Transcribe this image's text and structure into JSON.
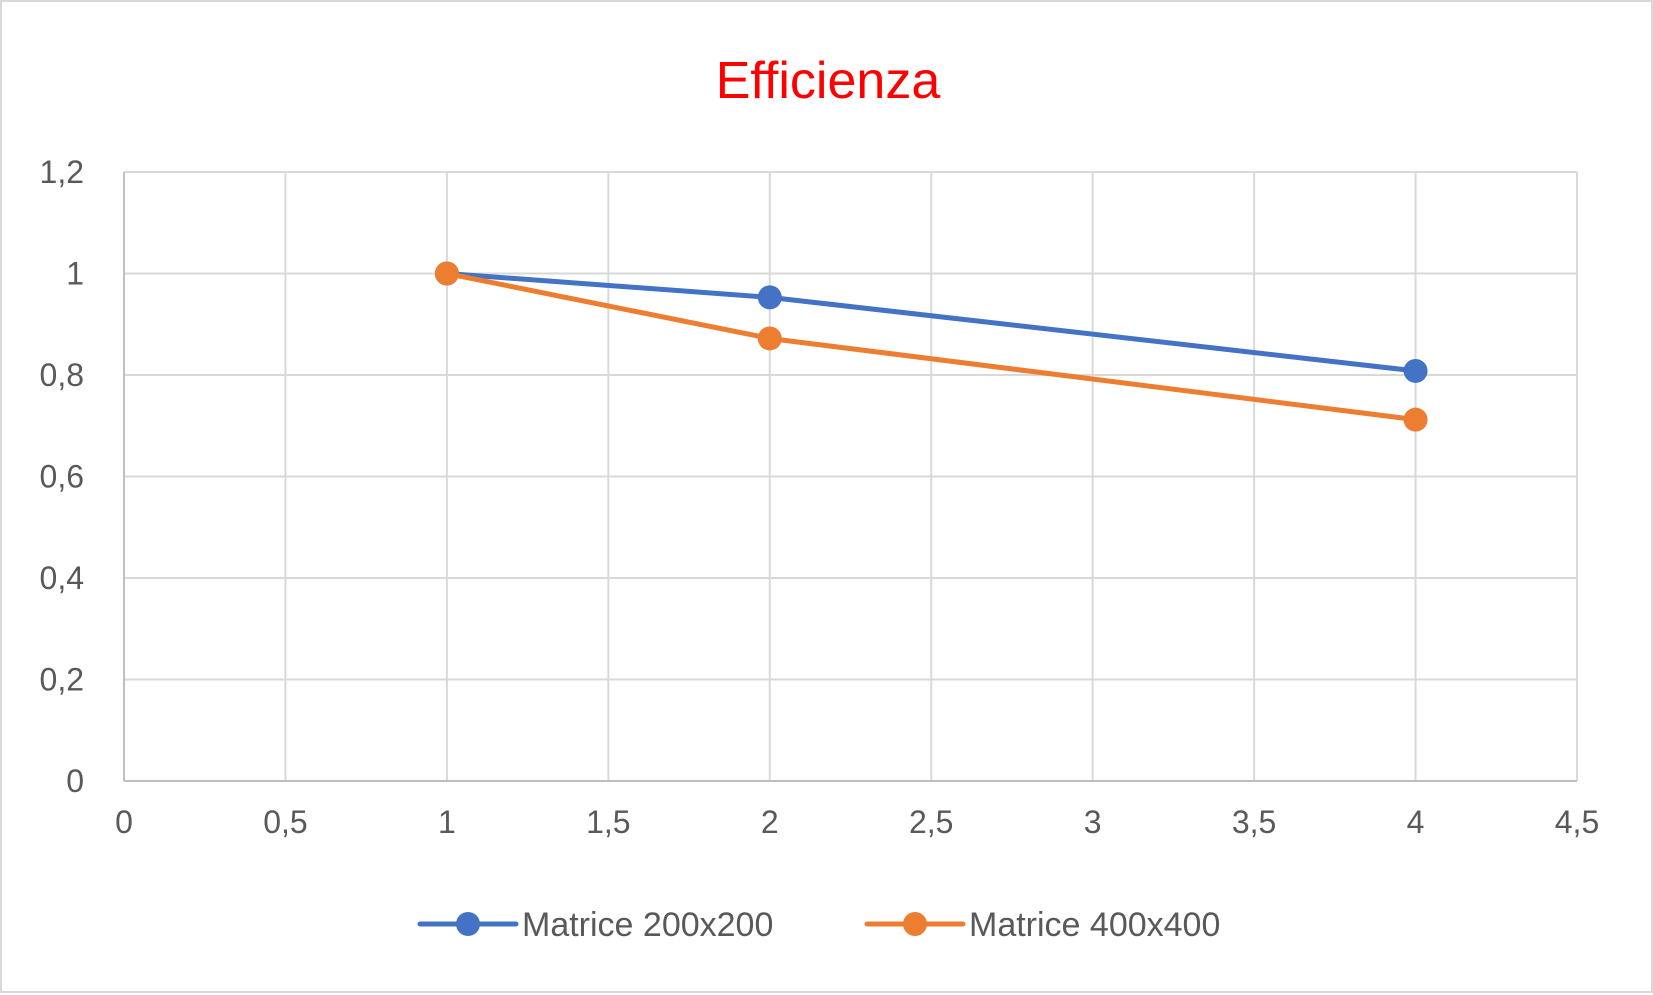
{
  "chart_data": {
    "type": "scatter",
    "title": "Efficienza",
    "xlabel": "",
    "ylabel": "",
    "xlim": [
      0,
      4.5
    ],
    "ylim": [
      0,
      1.2
    ],
    "x_ticks": [
      "0",
      "0,5",
      "1",
      "1,5",
      "2",
      "2,5",
      "3",
      "3,5",
      "4",
      "4,5"
    ],
    "y_ticks": [
      "0",
      "0,2",
      "0,4",
      "0,6",
      "0,8",
      "1",
      "1,2"
    ],
    "grid": true,
    "legend_position": "bottom",
    "series": [
      {
        "name": "Matrice 200x200",
        "color": "#4472c4",
        "x": [
          1,
          2,
          4
        ],
        "y": [
          1.0,
          0.953,
          0.808
        ]
      },
      {
        "name": "Matrice 400x400",
        "color": "#ed7d31",
        "x": [
          1,
          2,
          4
        ],
        "y": [
          1.0,
          0.872,
          0.712
        ]
      }
    ],
    "colors": {
      "title": "#ff0000",
      "grid": "#d9d9d9",
      "text": "#595959"
    }
  }
}
